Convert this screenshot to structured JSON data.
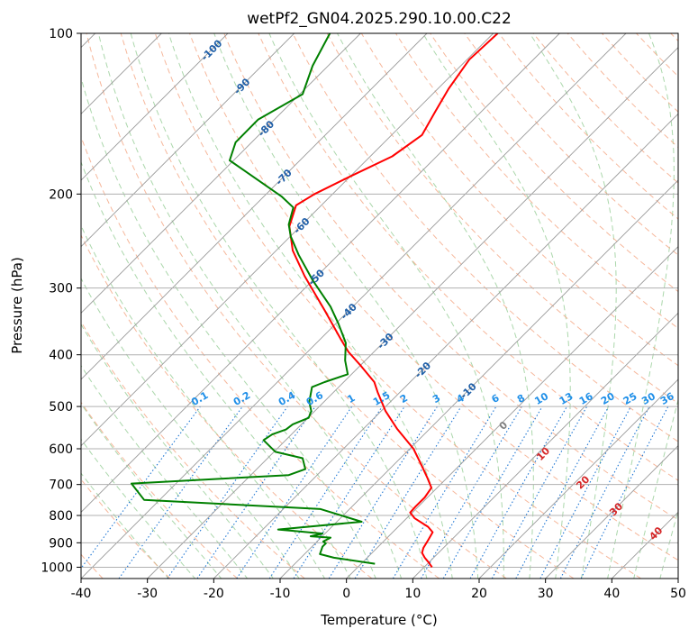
{
  "chart_data": {
    "type": "line",
    "title": "wetPf2_GN04.2025.290.10.00.C22",
    "xlabel": "Temperature (°C)",
    "ylabel": "Pressure (hPa)",
    "xlim": [
      -40,
      50
    ],
    "ylim": [
      1050,
      100
    ],
    "y_scale": "log",
    "grid": true,
    "x_ticks": [
      "-40",
      "-30",
      "-20",
      "-10",
      "0",
      "10",
      "20",
      "30",
      "40",
      "50"
    ],
    "y_ticks": [
      "100",
      "200",
      "300",
      "400",
      "500",
      "600",
      "700",
      "800",
      "900",
      "1000"
    ],
    "series": [
      {
        "color": "#ff0000",
        "x": [
          12.9,
          12.4,
          11.8,
          11.4,
          11.6,
          12.3,
          13.0,
          12.3,
          10.3,
          9.6,
          10.4,
          11.8,
          12.8,
          12.2,
          11.2,
          10.1,
          7.6,
          5.9,
          4.7,
          4.2,
          2.2,
          0.3,
          -0.8,
          -3.3,
          -6.3,
          -8.1,
          -8.6,
          -7.6,
          -4.8,
          0.7,
          6.9,
          11.4,
          13.4,
          15.4,
          18.5,
          22.8
        ],
        "y": [
          1000,
          980,
          960,
          940,
          920,
          890,
          860,
          840,
          810,
          790,
          770,
          740,
          710,
          680,
          640,
          600,
          550,
          510,
          470,
          450,
          420,
          395,
          375,
          330,
          285,
          255,
          230,
          210,
          200,
          185,
          170,
          155,
          140,
          127,
          112,
          100
        ]
      },
      {
        "color": "#008000",
        "x": [
          4.3,
          -1.9,
          -4.0,
          -3.6,
          -3.1,
          -3.5,
          -2.4,
          -5.4,
          -3.6,
          -8.0,
          -10.3,
          2.3,
          -3.9,
          -30.5,
          -32.4,
          -8.7,
          -6.2,
          -6.6,
          -10.7,
          -12.5,
          -11.2,
          -9.1,
          -8.1,
          -5.7,
          -5.3,
          -5.6,
          -5.2,
          -3.3,
          0.2,
          -0.2,
          -0.1,
          -1.2,
          -2.4,
          -5.1,
          -7.2,
          -8.4,
          -8.7,
          -8.0,
          -9.8,
          -15.6,
          -17.6,
          -16.7,
          -13.3,
          -6.6,
          -5.1,
          -2.5
        ],
        "y": [
          985,
          960,
          945,
          915,
          902,
          895,
          880,
          875,
          865,
          855,
          850,
          822,
          778,
          748,
          697,
          672,
          655,
          625,
          608,
          578,
          564,
          552,
          540,
          525,
          510,
          490,
          460,
          450,
          435,
          410,
          380,
          350,
          325,
          290,
          260,
          240,
          228,
          212,
          202,
          180,
          173,
          160,
          145,
          130,
          115,
          100
        ]
      }
    ],
    "dry_adiabat_labels": [
      "-100",
      "-90",
      "-80",
      "-70",
      "-60",
      "-50",
      "-40",
      "-30",
      "-20",
      "-10"
    ],
    "mixing_ratio_labels": [
      "0.1",
      "0.2",
      "0.4",
      "0.6",
      "1",
      "1.5",
      "2",
      "3",
      "4",
      "6",
      "8",
      "10",
      "13",
      "16",
      "20",
      "25",
      "30",
      "36"
    ],
    "moist_adiabat_labels": [
      "0",
      "10",
      "20",
      "30",
      "40"
    ],
    "colors": {
      "temperature": "#ff0000",
      "dewpoint": "#008000",
      "isotherm": "#999999",
      "dry_adiabat": "#f4a582",
      "moist_adiabat": "#8fc98f",
      "mixing_ratio": "#1f77d4",
      "label_dry": "#1f5fa8",
      "label_mixing": "#1f8fe8",
      "label_moist": "#d62728",
      "label_moist_zero": "#808080"
    }
  }
}
